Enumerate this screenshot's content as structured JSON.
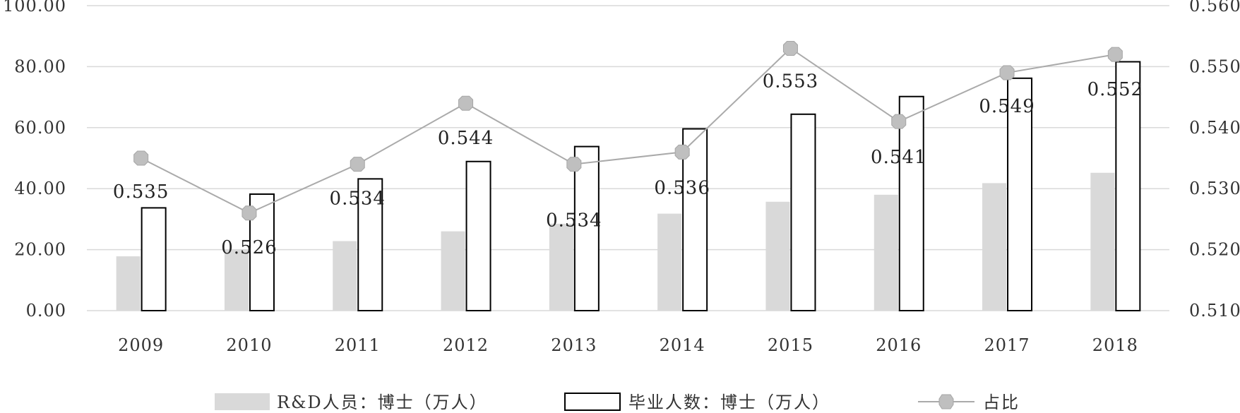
{
  "chart_data": {
    "type": "bar",
    "categories": [
      "2009",
      "2010",
      "2011",
      "2012",
      "2013",
      "2014",
      "2015",
      "2016",
      "2017",
      "2018"
    ],
    "series": [
      {
        "name": "R&D人员：博士（万人）",
        "kind": "bar",
        "axis": "left",
        "color": "#d9d9d9",
        "values": [
          17.8,
          20.0,
          22.8,
          26.0,
          28.5,
          31.8,
          35.7,
          38.0,
          41.8,
          45.2
        ]
      },
      {
        "name": "毕业人数：博士（万人）",
        "kind": "bar",
        "axis": "left",
        "color": "#ffffff",
        "stroke": "#000000",
        "values": [
          33.7,
          38.2,
          43.2,
          48.9,
          53.8,
          59.6,
          64.4,
          70.2,
          76.2,
          81.6
        ]
      },
      {
        "name": "占比",
        "kind": "line",
        "axis": "right",
        "color": "#aaaaaa",
        "marker_color": "#bfbfbf",
        "values": [
          0.535,
          0.526,
          0.534,
          0.544,
          0.534,
          0.536,
          0.553,
          0.541,
          0.549,
          0.552
        ],
        "labels": [
          "0.535",
          "0.526",
          "0.534",
          "0.544",
          "0.534",
          "0.536",
          "0.553",
          "0.541",
          "0.549",
          "0.552"
        ]
      }
    ],
    "y_left": {
      "min": 0,
      "max": 100,
      "ticks": [
        "0.00",
        "20.00",
        "40.00",
        "60.00",
        "80.00",
        "100.00"
      ]
    },
    "y_right": {
      "min": 0.51,
      "max": 0.56,
      "ticks": [
        "0.510",
        "0.520",
        "0.530",
        "0.540",
        "0.550",
        "0.560"
      ]
    },
    "grid": true,
    "legend_position": "bottom",
    "gridline_color": "#d9d9d9"
  }
}
